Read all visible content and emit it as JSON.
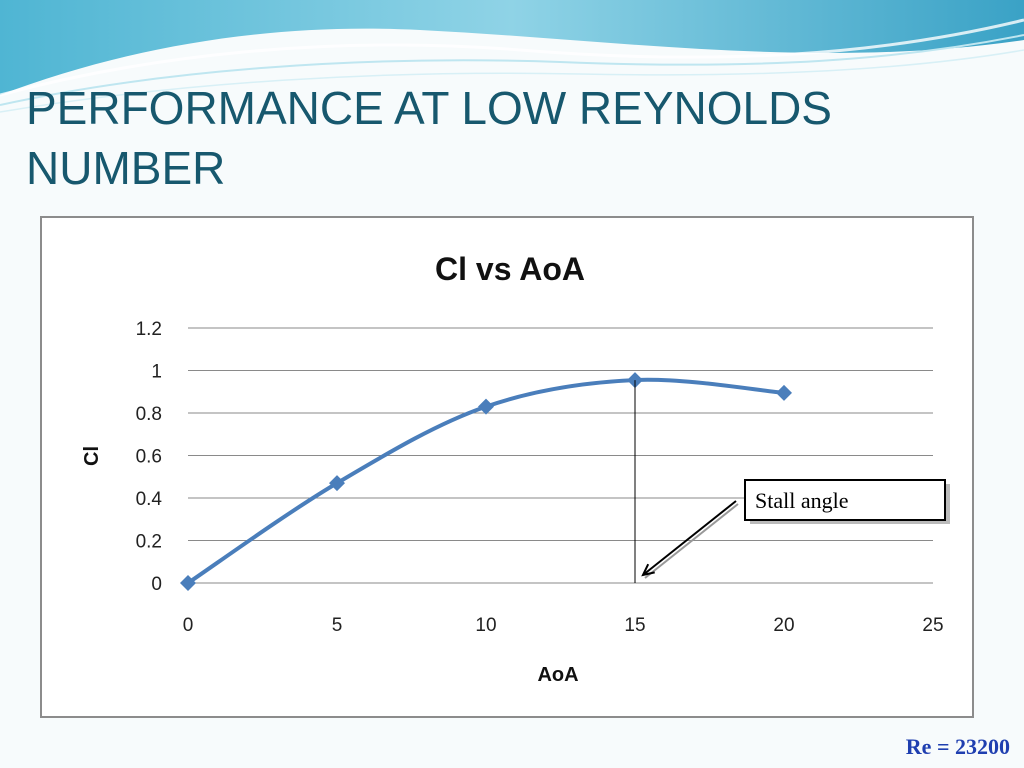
{
  "slide": {
    "title": "PERFORMANCE AT LOW REYNOLDS NUMBER",
    "footnote": "Re = 23200"
  },
  "colors": {
    "title": "#17586e",
    "series": "#4a7ebb",
    "footnote": "#1f3fb0",
    "wave": "#3fa8c8"
  },
  "chart_data": {
    "type": "line",
    "title": "Cl vs AoA",
    "xlabel": "AoA",
    "ylabel": "Cl",
    "xlim": [
      0,
      25
    ],
    "ylim": [
      0,
      1.2
    ],
    "xticks": [
      "0",
      "5",
      "10",
      "15",
      "20",
      "25"
    ],
    "yticks": [
      "0",
      "0.2",
      "0.4",
      "0.6",
      "0.8",
      "1",
      "1.2"
    ],
    "grid": "horizontal",
    "legend": "none",
    "series": [
      {
        "x": [
          0,
          5,
          10,
          15,
          20
        ],
        "y": [
          0,
          0.47,
          0.83,
          0.955,
          0.895
        ],
        "smooth": true,
        "marker": "diamond"
      }
    ],
    "annotation": {
      "text": "Stall angle",
      "x": 15
    }
  }
}
